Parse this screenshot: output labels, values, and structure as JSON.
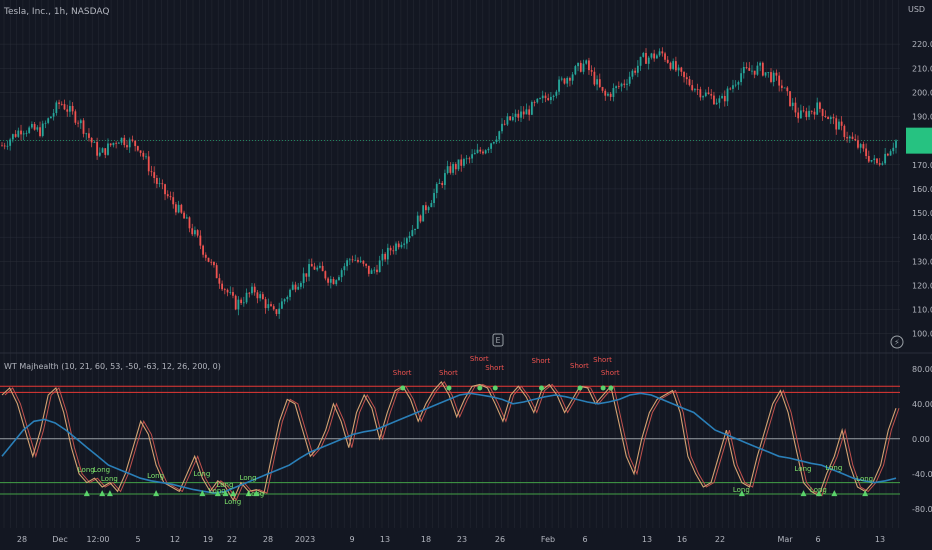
{
  "header": {
    "symbol_title": "Tesla, Inc., 1h, NASDAQ",
    "currency": "USD"
  },
  "colors": {
    "background": "#131722",
    "grid": "#2a2e39",
    "up": "#26a69a",
    "down": "#ef5350",
    "price_badge": "#26c281",
    "wt1": "#d4a373",
    "wt2": "#2a7fb8",
    "ob_line": "#e53935",
    "os_line": "#43a047",
    "zero_line": "#9aa0a6",
    "text": "#b2b5be",
    "short_text": "#ef5350",
    "long_text": "#7ee36b"
  },
  "chart_data": [
    {
      "type": "candlestick",
      "title": "Tesla, Inc., 1h, NASDAQ",
      "ylabel": "USD",
      "ylim": [
        92,
        230
      ],
      "yticks": [
        100,
        110,
        120,
        130,
        140,
        150,
        160,
        170,
        180,
        190,
        200,
        210,
        220
      ],
      "ytick_labels": [
        "100.00",
        "110.00",
        "120.00",
        "130.00",
        "140.00",
        "150.00",
        "160.00",
        "170.00",
        "180.00",
        "190.00",
        "200.00",
        "210.00",
        "220.00"
      ],
      "last_price": 180,
      "x_tick_labels": [
        "28",
        "Dec",
        "12:00",
        "5",
        "12",
        "19",
        "22",
        "28",
        "2023",
        "9",
        "13",
        "18",
        "23",
        "26",
        "Feb",
        "6",
        "13",
        "16",
        "22",
        "Mar",
        "6",
        "13"
      ],
      "series": [
        {
          "name": "Close",
          "x": [
            0,
            5,
            10,
            15,
            20,
            25,
            30,
            35,
            40,
            45,
            50,
            55,
            60,
            65,
            70,
            75,
            80,
            85,
            90,
            95,
            100
          ],
          "values": [
            178,
            185,
            184,
            196,
            188,
            174,
            181,
            178,
            162,
            152,
            140,
            125,
            112,
            118,
            108,
            120,
            128,
            122,
            132,
            125,
            135
          ]
        },
        {
          "name": "Close",
          "x": [
            105,
            110,
            115,
            120,
            125,
            130,
            135,
            140,
            145,
            150,
            155,
            160,
            165,
            170,
            175,
            180,
            185,
            190,
            195,
            200
          ],
          "values": [
            142,
            155,
            168,
            172,
            178,
            188,
            192,
            198,
            206,
            212,
            198,
            204,
            214,
            216,
            206,
            200,
            196,
            208,
            210,
            204
          ]
        },
        {
          "name": "Close",
          "x": [
            205,
            210,
            215,
            220,
            225,
            230
          ],
          "values": [
            190,
            194,
            186,
            178,
            170,
            180
          ]
        }
      ]
    },
    {
      "type": "line",
      "title": "WT Majhealth (10, 21, 60, 53, -50, -63, 12, 26, 200, 0)",
      "ylim": [
        -95,
        90
      ],
      "yticks": [
        80,
        40,
        0,
        -40,
        -80
      ],
      "ytick_labels": [
        "80.00",
        "40.00",
        "0.00",
        "-40.00",
        "-80.00"
      ],
      "levels": [
        60,
        53,
        0,
        -50,
        -63
      ],
      "series": [
        {
          "name": "WT",
          "values": [
            50,
            58,
            40,
            10,
            -20,
            10,
            50,
            58,
            30,
            -10,
            -40,
            -50,
            -45,
            -55,
            -50,
            -60,
            -40,
            -10,
            20,
            5,
            -30,
            -50,
            -55,
            -60,
            -40,
            -20,
            -45,
            -60,
            -48,
            -55,
            -70,
            -50,
            -60,
            -58,
            -62,
            -20,
            20,
            45,
            40,
            10,
            -20,
            -10,
            10,
            40,
            20,
            -10,
            30,
            50,
            35,
            0,
            30,
            55,
            60,
            45,
            20,
            40,
            55,
            65,
            50,
            25,
            45,
            60,
            62,
            58,
            40,
            20,
            50,
            60,
            48,
            30,
            55,
            62,
            50,
            30,
            45,
            60,
            58,
            40,
            50,
            60,
            20,
            -20,
            -40,
            0,
            30,
            45,
            50,
            55,
            30,
            -20,
            -40,
            -55,
            -50,
            -20,
            10,
            -30,
            -50,
            -55,
            -20,
            10,
            40,
            55,
            30,
            -10,
            -50,
            -60,
            -65,
            -40,
            -20,
            10,
            -30,
            -55,
            -60,
            -50,
            -30,
            10,
            35
          ]
        },
        {
          "name": "Trend",
          "values": [
            -20,
            -5,
            10,
            20,
            22,
            18,
            10,
            0,
            -10,
            -20,
            -30,
            -35,
            -40,
            -45,
            -48,
            -50,
            -52,
            -55,
            -58,
            -60,
            -62,
            -60,
            -55,
            -50,
            -45,
            -40,
            -35,
            -30,
            -22,
            -15,
            -10,
            -5,
            0,
            5,
            8,
            10,
            15,
            20,
            25,
            30,
            35,
            40,
            45,
            50,
            52,
            50,
            48,
            45,
            40,
            42,
            45,
            48,
            50,
            48,
            45,
            42,
            40,
            42,
            45,
            50,
            52,
            50,
            45,
            40,
            35,
            30,
            20,
            10,
            5,
            0,
            -5,
            -10,
            -15,
            -20,
            -22,
            -25,
            -28,
            -30,
            -35,
            -40,
            -45,
            -48,
            -50,
            -48,
            -45
          ]
        }
      ],
      "annotations": {
        "short": [
          "Short",
          "Short",
          "Short",
          "Short",
          "Short",
          "Short",
          "Short",
          "Short"
        ],
        "long": [
          "Long",
          "Long",
          "Long",
          "Long",
          "Long",
          "Long",
          "Long",
          "Long",
          "Long",
          "Long",
          "Long",
          "Long",
          "Long",
          "Long",
          "Long"
        ]
      }
    }
  ]
}
